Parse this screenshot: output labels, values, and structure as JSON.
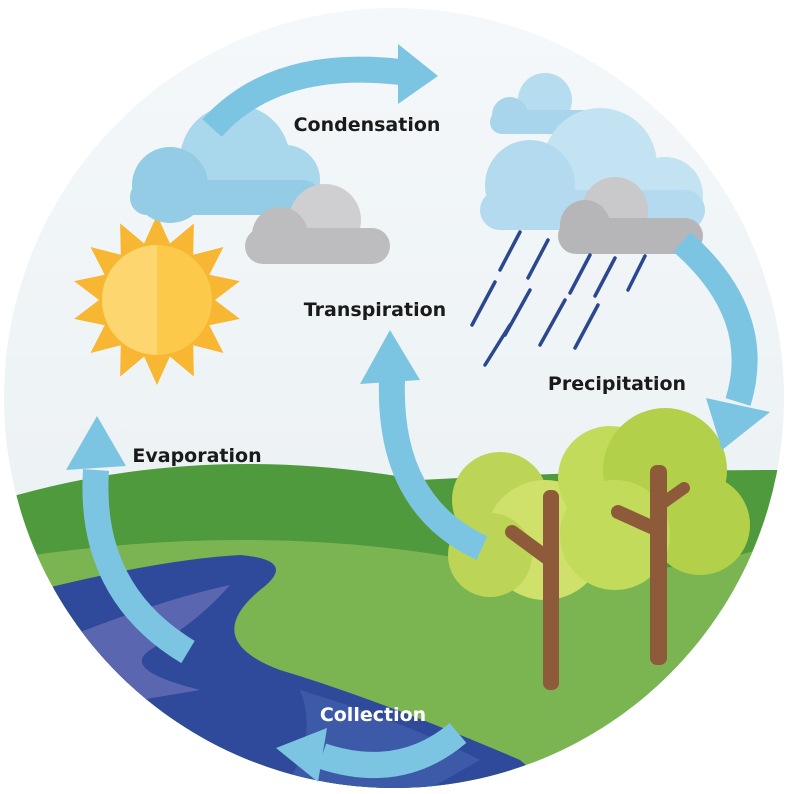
{
  "stages": [
    {
      "label": "Condensation"
    },
    {
      "label": "Transpiration"
    },
    {
      "label": "Precipitation"
    },
    {
      "label": "Evaporation"
    },
    {
      "label": "Collection"
    }
  ]
}
